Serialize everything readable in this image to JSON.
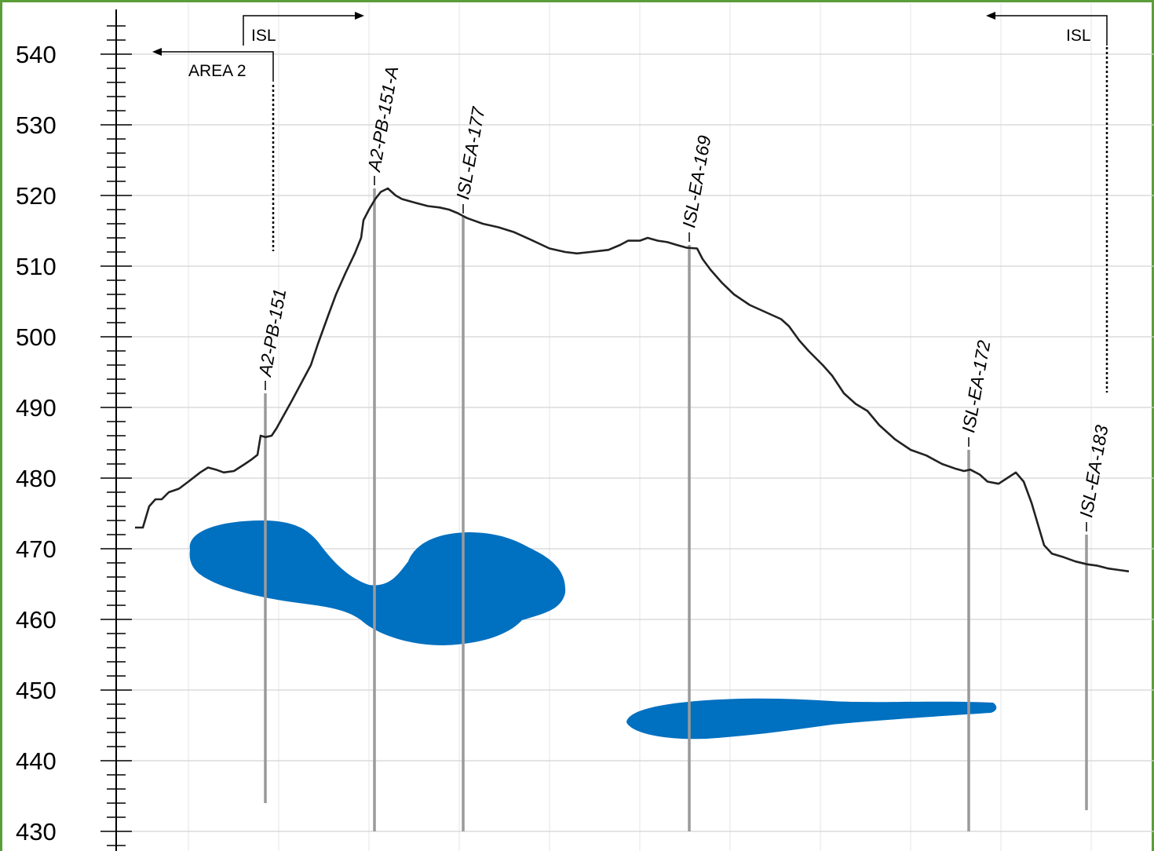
{
  "chart_data": {
    "type": "diagram",
    "y_axis": {
      "range": [
        430,
        545
      ],
      "ticks": [
        540,
        530,
        520,
        510,
        500,
        490,
        480,
        470,
        460,
        450,
        440,
        430
      ]
    },
    "grid": true,
    "area_markers": [
      {
        "id": "isl-left",
        "label": "ISL",
        "direction": "right"
      },
      {
        "id": "area2",
        "label": "AREA 2",
        "direction": "left"
      },
      {
        "id": "isl-right",
        "label": "ISL",
        "direction": "left"
      }
    ],
    "wells": [
      {
        "id": "A2-PB-151",
        "label": "A2-PB-151",
        "top_elev": 492,
        "bottom_elev": 434
      },
      {
        "id": "A2-PB-151-A",
        "label": "A2-PB-151-A",
        "top_elev": 521,
        "bottom_elev": 430
      },
      {
        "id": "ISL-EA-177",
        "label": "ISL-EA-177",
        "top_elev": 517,
        "bottom_elev": 430
      },
      {
        "id": "ISL-EA-169",
        "label": "ISL-EA-169",
        "top_elev": 513,
        "bottom_elev": 430
      },
      {
        "id": "ISL-EA-172",
        "label": "ISL-EA-172",
        "top_elev": 484,
        "bottom_elev": 430
      },
      {
        "id": "ISL-EA-183",
        "label": "ISL-EA-183",
        "top_elev": 472,
        "bottom_elev": 433
      }
    ],
    "ground_surface_color": "#222222",
    "blob_color": "#0070c0"
  }
}
